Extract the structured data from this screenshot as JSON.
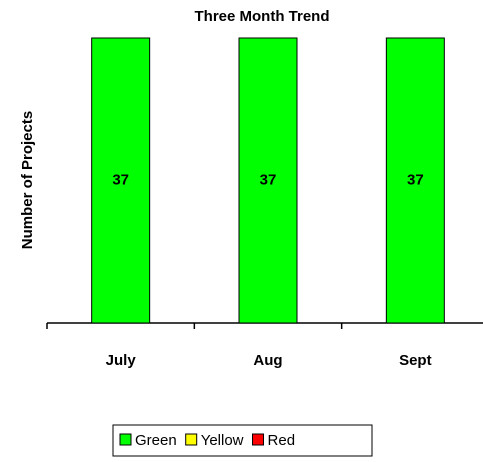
{
  "chart_data": {
    "type": "stacked_bar",
    "title": "Three Month Trend",
    "y_label": "Number of Projects",
    "categories": [
      "July",
      "Aug",
      "Sept"
    ],
    "series": [
      {
        "name": "Green",
        "color": "#00ff00",
        "values": [
          37,
          37,
          37
        ]
      },
      {
        "name": "Yellow",
        "color": "#ffff00",
        "values": [
          0,
          0,
          0
        ]
      },
      {
        "name": "Red",
        "color": "#ff0000",
        "values": [
          0,
          0,
          0
        ]
      }
    ],
    "ylim": [
      0,
      37
    ],
    "grid": false,
    "data_labels": true,
    "legend": "bottom"
  }
}
